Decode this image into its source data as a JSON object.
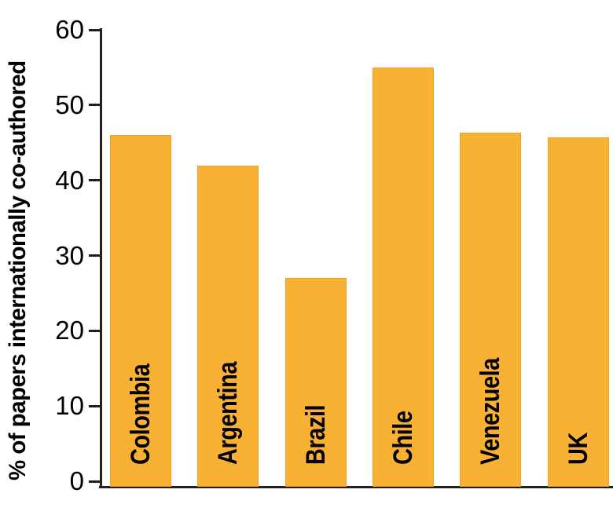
{
  "figure": {
    "background_color": "#ffffff",
    "bar_color": "#F8B133",
    "bar_border_color": "#EFA125",
    "axis_color": "#231F20",
    "text_color": "#000000"
  },
  "chart_data": {
    "type": "bar",
    "categories": [
      "Colombia",
      "Argentina",
      "Brazil",
      "Chile",
      "Venezuela",
      "UK"
    ],
    "values": [
      46.0,
      41.9,
      27.0,
      55.0,
      46.3,
      45.7
    ],
    "title": "",
    "xlabel": "",
    "ylabel": "% of papers internationally co-authored",
    "ylim": [
      0,
      60
    ],
    "yticks": [
      0,
      10,
      20,
      30,
      40,
      50,
      60
    ],
    "grid": false,
    "legend": null,
    "bar_label_position": "inside-bottom-vertical"
  }
}
